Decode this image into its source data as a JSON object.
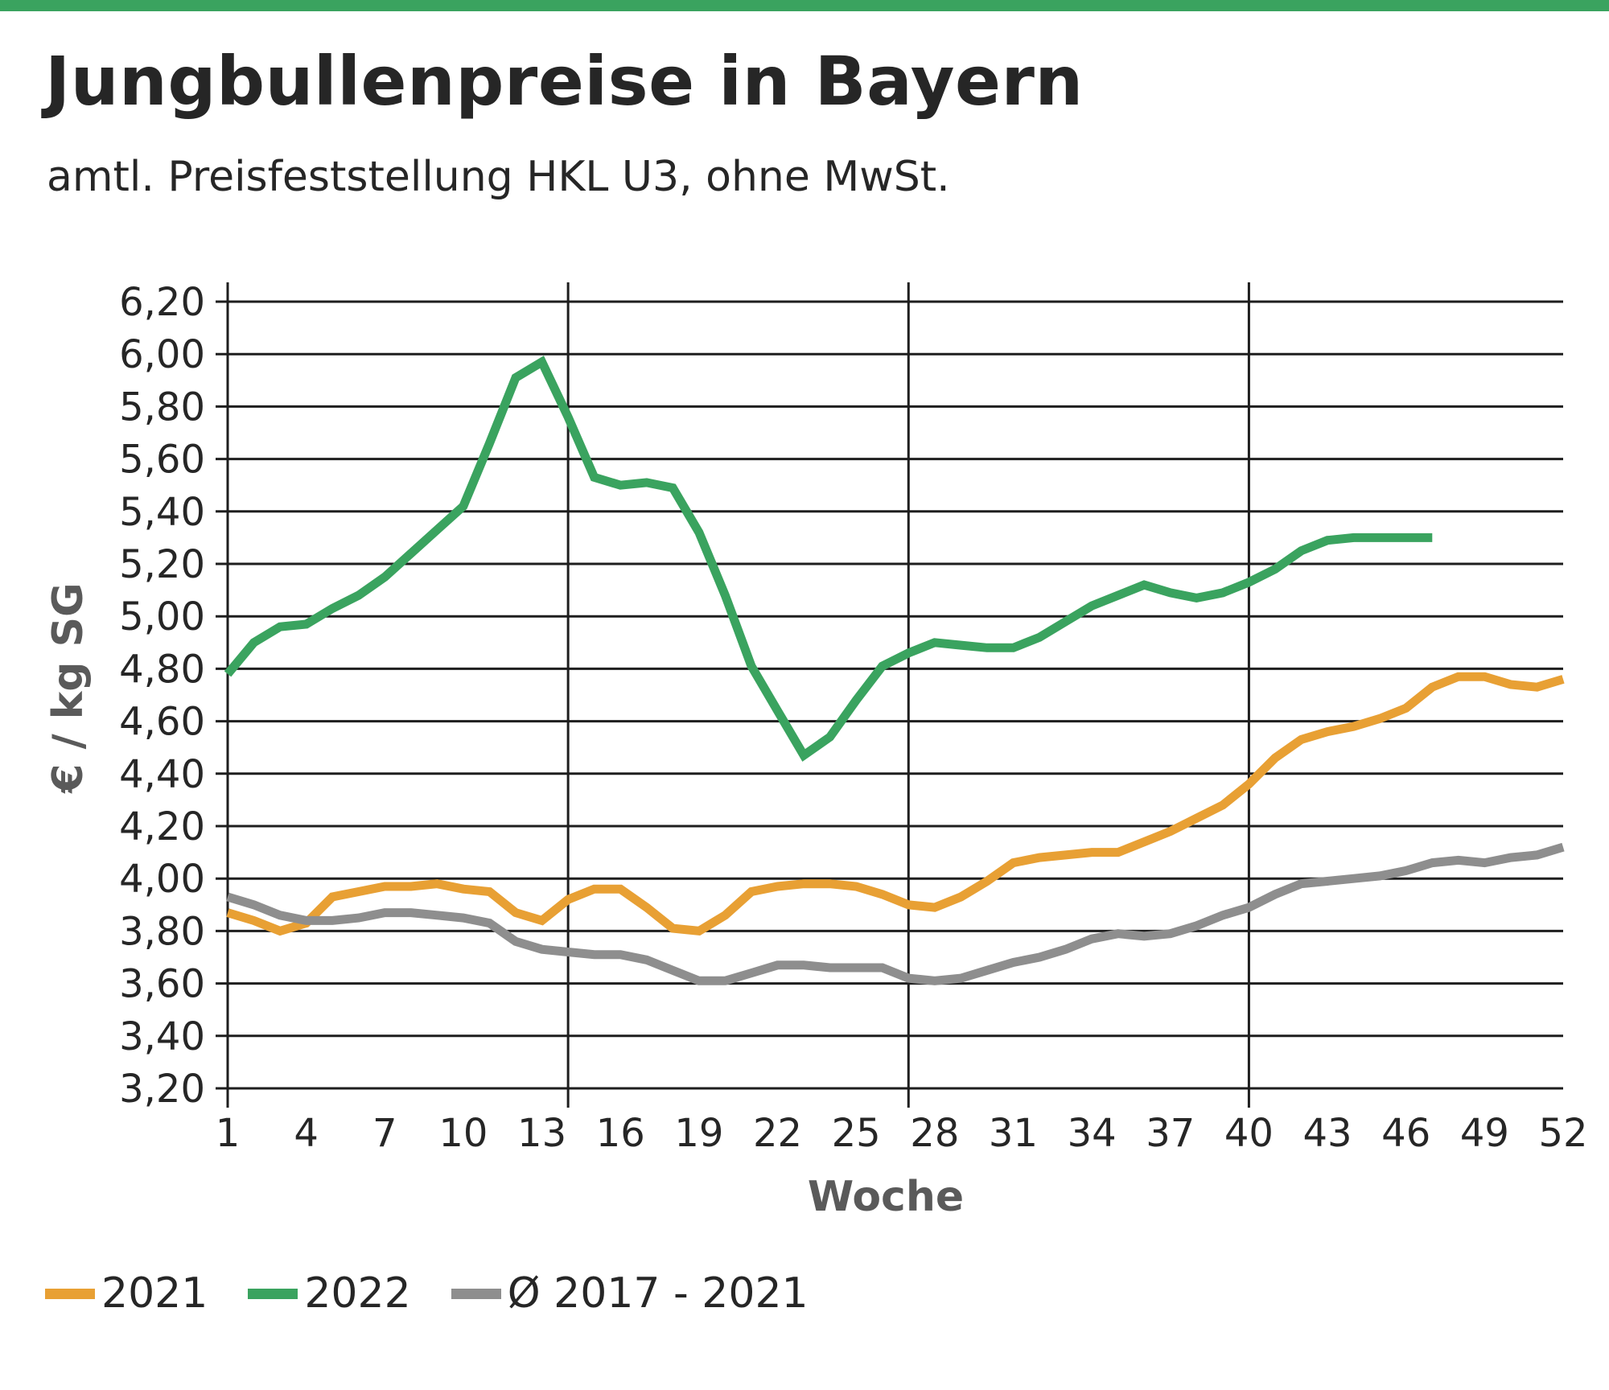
{
  "title": "Jungbullenpreise in Bayern",
  "subtitle": "amtl. Preisfeststellung HKL U3, ohne MwSt.",
  "colors": {
    "accent_bar": "#3aa35f",
    "grid": "#1e1e1e",
    "text": "#262626",
    "axis_label": "#5a5a5a"
  },
  "chart_data": {
    "type": "line",
    "xlabel": "Woche",
    "ylabel": "€ / kg SG",
    "xlim": [
      1,
      52
    ],
    "ylim": [
      3.2,
      6.2
    ],
    "x_ticks": [
      1,
      4,
      7,
      10,
      13,
      16,
      19,
      22,
      25,
      28,
      31,
      34,
      37,
      40,
      43,
      46,
      49,
      52
    ],
    "x_tick_labels": [
      "1",
      "4",
      "7",
      "10",
      "13",
      "16",
      "19",
      "22",
      "25",
      "28",
      "31",
      "34",
      "37",
      "40",
      "43",
      "46",
      "49",
      "52"
    ],
    "y_ticks": [
      3.2,
      3.4,
      3.6,
      3.8,
      4.0,
      4.2,
      4.4,
      4.6,
      4.8,
      5.0,
      5.2,
      5.4,
      5.6,
      5.8,
      6.0,
      6.2
    ],
    "y_tick_labels": [
      "3,20",
      "3,40",
      "3,60",
      "3,80",
      "4,00",
      "4,20",
      "4,40",
      "4,60",
      "4,80",
      "5,00",
      "5,20",
      "5,40",
      "5,60",
      "5,80",
      "6,00",
      "6,20"
    ],
    "vertical_grid_at": [
      1,
      14,
      27,
      40
    ],
    "grid": true,
    "legend_position": "bottom-left",
    "series": [
      {
        "name": "2021",
        "color": "#e8a034",
        "x": [
          1,
          2,
          3,
          4,
          5,
          6,
          7,
          8,
          9,
          10,
          11,
          12,
          13,
          14,
          15,
          16,
          17,
          18,
          19,
          20,
          21,
          22,
          23,
          24,
          25,
          26,
          27,
          28,
          29,
          30,
          31,
          32,
          33,
          34,
          35,
          36,
          37,
          38,
          39,
          40,
          41,
          42,
          43,
          44,
          45,
          46,
          47,
          48,
          49,
          50,
          51,
          52
        ],
        "values": [
          3.87,
          3.84,
          3.8,
          3.83,
          3.93,
          3.95,
          3.97,
          3.97,
          3.98,
          3.96,
          3.95,
          3.87,
          3.84,
          3.92,
          3.96,
          3.96,
          3.89,
          3.81,
          3.8,
          3.86,
          3.95,
          3.97,
          3.98,
          3.98,
          3.97,
          3.94,
          3.9,
          3.89,
          3.93,
          3.99,
          4.06,
          4.08,
          4.09,
          4.1,
          4.1,
          4.14,
          4.18,
          4.23,
          4.28,
          4.36,
          4.46,
          4.53,
          4.56,
          4.58,
          4.61,
          4.65,
          4.73,
          4.77,
          4.77,
          4.74,
          4.73,
          4.76
        ]
      },
      {
        "name": "2022",
        "color": "#3aa35f",
        "x": [
          1,
          2,
          3,
          4,
          5,
          6,
          7,
          8,
          9,
          10,
          11,
          12,
          13,
          14,
          15,
          16,
          17,
          18,
          19,
          20,
          21,
          22,
          23,
          24,
          25,
          26,
          27,
          28,
          29,
          30,
          31,
          32,
          33,
          34,
          35,
          36,
          37,
          38,
          39,
          40,
          41,
          42,
          43,
          44,
          45,
          46,
          47
        ],
        "values": [
          4.78,
          4.9,
          4.96,
          4.97,
          5.03,
          5.08,
          5.15,
          5.24,
          5.33,
          5.42,
          5.66,
          5.91,
          5.97,
          5.76,
          5.53,
          5.5,
          5.51,
          5.49,
          5.32,
          5.08,
          4.81,
          4.64,
          4.47,
          4.54,
          4.68,
          4.81,
          4.86,
          4.9,
          4.89,
          4.88,
          4.88,
          4.92,
          4.98,
          5.04,
          5.08,
          5.12,
          5.09,
          5.07,
          5.09,
          5.13,
          5.18,
          5.25,
          5.29,
          5.3,
          5.3,
          5.3,
          5.3
        ]
      },
      {
        "name": "Ø 2017 - 2021",
        "color": "#8e8e8e",
        "x": [
          1,
          2,
          3,
          4,
          5,
          6,
          7,
          8,
          9,
          10,
          11,
          12,
          13,
          14,
          15,
          16,
          17,
          18,
          19,
          20,
          21,
          22,
          23,
          24,
          25,
          26,
          27,
          28,
          29,
          30,
          31,
          32,
          33,
          34,
          35,
          36,
          37,
          38,
          39,
          40,
          41,
          42,
          43,
          44,
          45,
          46,
          47,
          48,
          49,
          50,
          51,
          52
        ],
        "values": [
          3.93,
          3.9,
          3.86,
          3.84,
          3.84,
          3.85,
          3.87,
          3.87,
          3.86,
          3.85,
          3.83,
          3.76,
          3.73,
          3.72,
          3.71,
          3.71,
          3.69,
          3.65,
          3.61,
          3.61,
          3.64,
          3.67,
          3.67,
          3.66,
          3.66,
          3.66,
          3.62,
          3.61,
          3.62,
          3.65,
          3.68,
          3.7,
          3.73,
          3.77,
          3.79,
          3.78,
          3.79,
          3.82,
          3.86,
          3.89,
          3.94,
          3.98,
          3.99,
          4.0,
          4.01,
          4.03,
          4.06,
          4.07,
          4.06,
          4.08,
          4.09,
          4.12
        ]
      }
    ]
  }
}
